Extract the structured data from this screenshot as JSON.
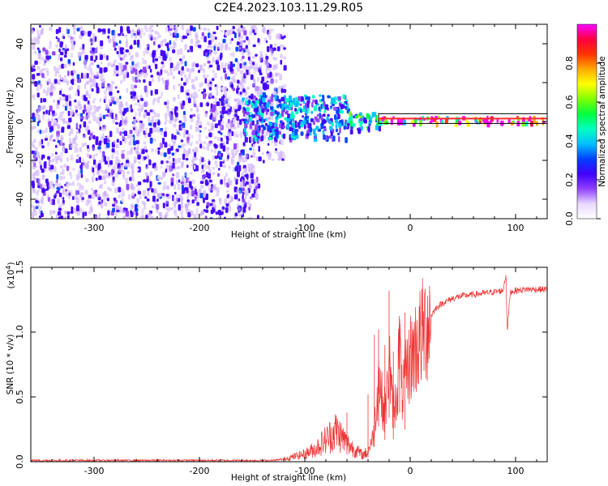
{
  "title": "C2E4.2023.103.11.29.R05",
  "colors": {
    "snr_line": "#ee3333",
    "scatter_weak": "#c8a8ff",
    "scatter_strong": "#6a00ff",
    "colorbar": [
      "#ff00ff",
      "#ff0040",
      "#ff3300",
      "#ffaa00",
      "#ffff00",
      "#80ff00",
      "#00ff40",
      "#00ffc0",
      "#00c0ff",
      "#0040ff",
      "#4000ff",
      "#9040ff",
      "#e8d8ff",
      "#ffffff"
    ]
  },
  "chart_data": [
    {
      "type": "heatmap",
      "title": "C2E4.2023.103.11.29.R05",
      "xlabel": "Height of straight line (km)",
      "ylabel": "Frequency (Hz)",
      "xlim": [
        -360,
        130
      ],
      "ylim": [
        -50,
        50
      ],
      "xticks": [
        "-300",
        "-200",
        "-100",
        "0",
        "100"
      ],
      "yticks": [
        "-40",
        "-20",
        "0",
        "20",
        "40"
      ],
      "colorbar": {
        "label": "Normalized spectral amplitude",
        "range": [
          0.0,
          1.0
        ],
        "ticks": [
          "0.0",
          "0.2",
          "0.4",
          "0.6",
          "0.8"
        ]
      },
      "regions": [
        {
          "x_range": [
            -360,
            -145
          ],
          "freq_range": [
            -50,
            50
          ],
          "amplitude": 0.1
        },
        {
          "x_range": [
            -145,
            -120
          ],
          "freq_range": [
            -20,
            50
          ],
          "amplitude": 0.05
        },
        {
          "x_range": [
            -190,
            -160
          ],
          "freq_range": [
            -2,
            12
          ],
          "amplitude": 0.15
        },
        {
          "x_range": [
            -160,
            -60
          ],
          "freq_range": [
            -8,
            14
          ],
          "amplitude": 0.3
        },
        {
          "x_range": [
            -60,
            -30
          ],
          "freq_range": [
            -4,
            6
          ],
          "amplitude": 0.4
        },
        {
          "x_range": [
            -30,
            130
          ],
          "freq_range": [
            0,
            3
          ],
          "amplitude": 0.9
        }
      ]
    },
    {
      "type": "line",
      "xlabel": "Height of straight line (km)",
      "ylabel": "SNR (10 * v/v)",
      "y_multiplier_label": "(x10",
      "y_multiplier_exp": "4",
      "y_multiplier_close": ")",
      "xlim": [
        -360,
        130
      ],
      "ylim": [
        0,
        1.5
      ],
      "xticks": [
        "-300",
        "-200",
        "-100",
        "0",
        "100"
      ],
      "yticks": [
        "0.0",
        "0.5",
        "1.0",
        "1.5"
      ],
      "series": [
        {
          "x": [
            -360,
            -300,
            -250,
            -200,
            -150,
            -130,
            -120,
            -110,
            -100,
            -90,
            -80,
            -70,
            -60,
            -50,
            -45,
            -40,
            -35,
            -32,
            -30,
            -28,
            -25,
            -22,
            -20,
            -18,
            -15,
            -12,
            -10,
            -8,
            -5,
            -2,
            0,
            5,
            10,
            15,
            20,
            25,
            30,
            40,
            50,
            60,
            70,
            80,
            88,
            91,
            92,
            95,
            100,
            110,
            120,
            130
          ],
          "y": [
            0.01,
            0.01,
            0.01,
            0.01,
            0.01,
            0.01,
            0.02,
            0.04,
            0.06,
            0.1,
            0.17,
            0.24,
            0.14,
            0.08,
            0.05,
            0.08,
            0.2,
            0.45,
            0.68,
            0.55,
            0.38,
            0.5,
            0.85,
            0.5,
            0.4,
            0.58,
            0.95,
            0.52,
            0.62,
            0.72,
            0.8,
            0.88,
            0.96,
            1.05,
            1.13,
            1.19,
            1.22,
            1.26,
            1.28,
            1.29,
            1.3,
            1.31,
            1.32,
            1.45,
            1.0,
            1.31,
            1.32,
            1.33,
            1.33,
            1.33
          ],
          "spikes": [
            [
              -60,
              0.38
            ],
            [
              -40,
              0.52
            ],
            [
              -34,
              0.98
            ],
            [
              -30,
              1.02
            ],
            [
              -24,
              0.9
            ],
            [
              -20,
              1.32
            ],
            [
              -16,
              0.85
            ],
            [
              -10,
              1.1
            ],
            [
              -5,
              1.15
            ]
          ]
        }
      ]
    }
  ]
}
